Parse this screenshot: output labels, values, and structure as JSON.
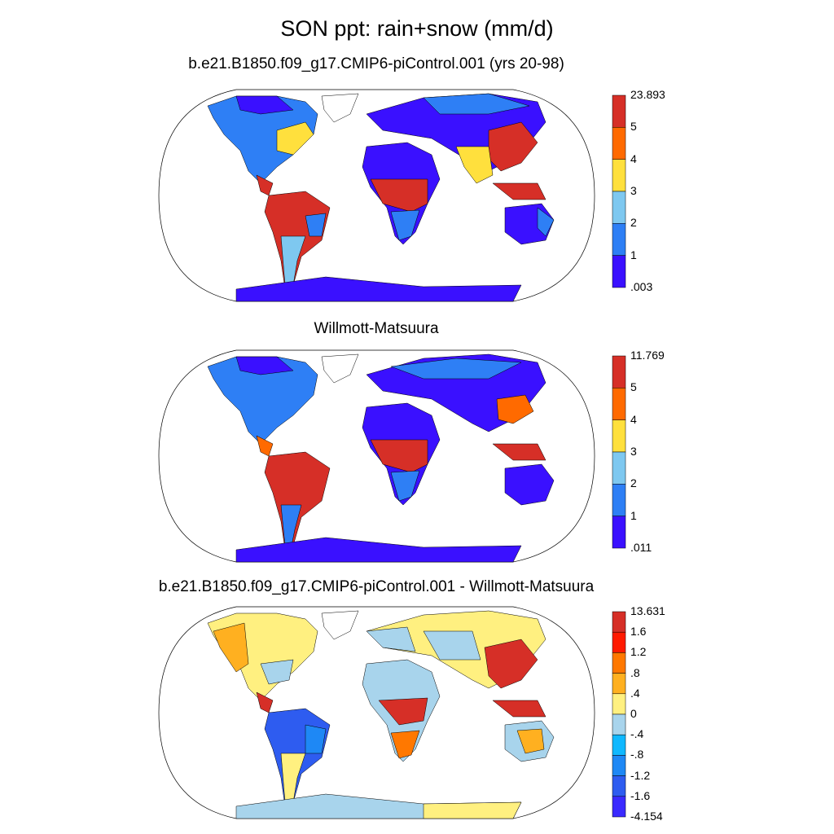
{
  "title": "SON ppt: rain+snow (mm/d)",
  "panels": [
    {
      "subtitle": "b.e21.B1850.f09_g17.CMIP6-piControl.001 (yrs 20-98)",
      "colorbar": {
        "labels": [
          "23.893",
          "5",
          "4",
          "3",
          "2",
          "1",
          ".003"
        ],
        "colors": [
          "#d62f27",
          "#ff6a00",
          "#ffe03d",
          "#7ec8f0",
          "#2e7ff5",
          "#3a10ff"
        ]
      }
    },
    {
      "subtitle": "Willmott-Matsuura",
      "colorbar": {
        "labels": [
          "11.769",
          "5",
          "4",
          "3",
          "2",
          "1",
          ".011"
        ],
        "colors": [
          "#d62f27",
          "#ff6a00",
          "#ffe03d",
          "#7ec8f0",
          "#2e7ff5",
          "#3a10ff"
        ]
      }
    },
    {
      "subtitle": "b.e21.B1850.f09_g17.CMIP6-piControl.001 - Willmott-Matsuura",
      "colorbar": {
        "labels": [
          "13.631",
          "1.6",
          "1.2",
          ".8",
          ".4",
          "0",
          "-.4",
          "-.8",
          "-1.2",
          "-1.6",
          "-4.154"
        ],
        "colors": [
          "#d62f27",
          "#ff1a00",
          "#ff7800",
          "#ffb020",
          "#fff080",
          "#a8d4ec",
          "#10b8ff",
          "#1e88f5",
          "#2e5cf0",
          "#3a2aff"
        ]
      }
    }
  ]
}
